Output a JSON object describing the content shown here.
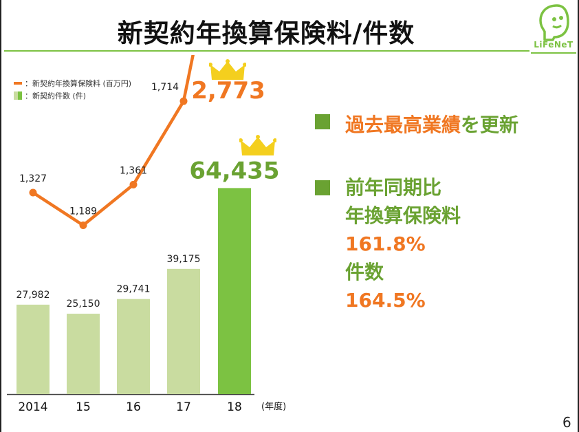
{
  "title": "新契約年換算保険料/件数",
  "logo_text": "LiFeNeT",
  "page_number": "6",
  "legend": {
    "line_label": "：新契約年換算保険料 (百万円)",
    "bar_label": "：新契約件数 (件)"
  },
  "colors": {
    "line": "#f07722",
    "bar": "#c9dca0",
    "bar_highlight": "#7cc242",
    "crown": "#f4cf1e",
    "accent_green": "#6aa232"
  },
  "chart_data": {
    "type": "bar",
    "categories": [
      "2014",
      "15",
      "16",
      "17",
      "18"
    ],
    "x_unit_label": "(年度)",
    "series": [
      {
        "name": "新契約件数 (件)",
        "kind": "bar",
        "values": [
          27982,
          25150,
          29741,
          39175,
          64435
        ],
        "labels": [
          "27,982",
          "25,150",
          "29,741",
          "39,175",
          "64,435"
        ]
      },
      {
        "name": "新契約年換算保険料 (百万円)",
        "kind": "line",
        "values": [
          1327,
          1189,
          1361,
          1714,
          2773
        ],
        "labels": [
          "1,327",
          "1,189",
          "1,361",
          "1,714",
          "2,773"
        ]
      }
    ]
  },
  "points": {
    "p1": {
      "highlight": "過去最高業績",
      "rest": "を更新"
    },
    "p2": {
      "line1": "前年同期比",
      "line2": "年換算保険料",
      "value1": "161.8%",
      "line3": "件数",
      "value2": "164.5%"
    }
  }
}
